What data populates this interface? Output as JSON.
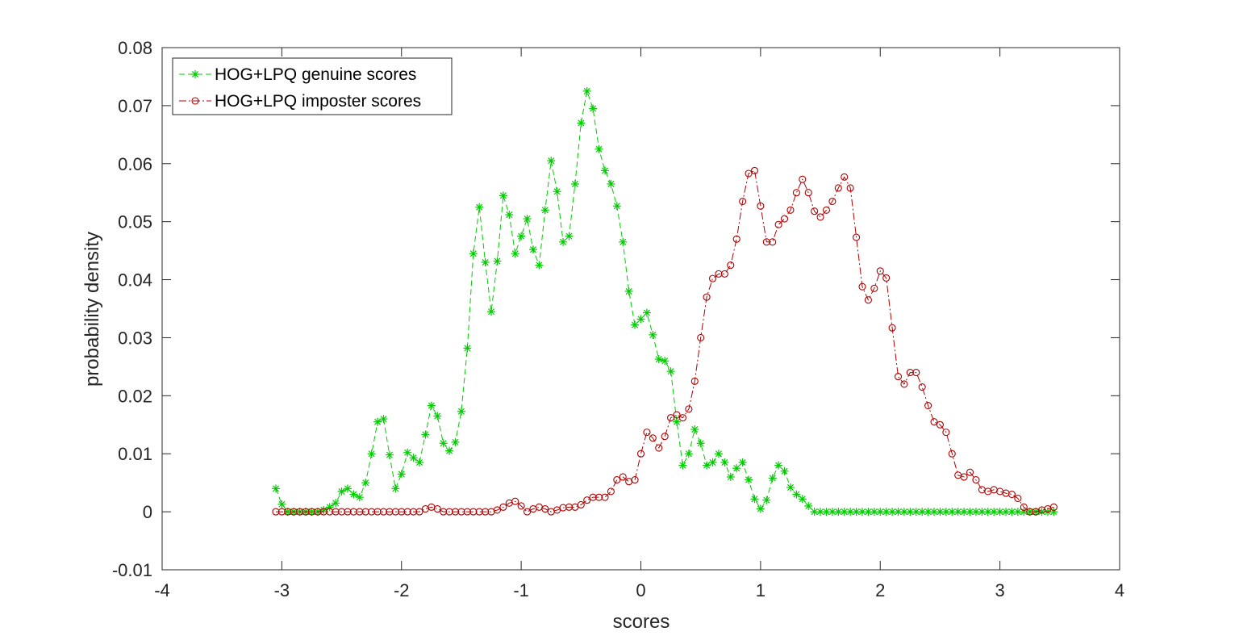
{
  "chart_data": {
    "type": "line",
    "title": "",
    "xlabel": "scores",
    "ylabel": "probability density",
    "xlim": [
      -4,
      4
    ],
    "ylim": [
      -0.01,
      0.08
    ],
    "xticks": [
      "-4",
      "-3",
      "-2",
      "-1",
      "0",
      "1",
      "2",
      "3",
      "4"
    ],
    "yticks": [
      "-0.01",
      "0",
      "0.01",
      "0.02",
      "0.03",
      "0.04",
      "0.05",
      "0.06",
      "0.07",
      "0.08"
    ],
    "grid": false,
    "legend_position": "top-left",
    "series": [
      {
        "name": "HOG+LPQ genuine scores",
        "color": "#00cc00",
        "line_style": "dashed",
        "marker": "asterisk",
        "x": [
          -3.05,
          -3.0,
          -2.95,
          -2.9,
          -2.85,
          -2.8,
          -2.75,
          -2.7,
          -2.65,
          -2.6,
          -2.55,
          -2.5,
          -2.45,
          -2.4,
          -2.35,
          -2.3,
          -2.25,
          -2.2,
          -2.15,
          -2.1,
          -2.05,
          -2.0,
          -1.95,
          -1.9,
          -1.85,
          -1.8,
          -1.75,
          -1.7,
          -1.65,
          -1.6,
          -1.55,
          -1.5,
          -1.45,
          -1.4,
          -1.35,
          -1.3,
          -1.25,
          -1.2,
          -1.15,
          -1.1,
          -1.05,
          -1.0,
          -0.95,
          -0.9,
          -0.85,
          -0.8,
          -0.75,
          -0.7,
          -0.65,
          -0.6,
          -0.55,
          -0.5,
          -0.45,
          -0.4,
          -0.35,
          -0.3,
          -0.25,
          -0.2,
          -0.15,
          -0.1,
          -0.05,
          0.0,
          0.05,
          0.1,
          0.15,
          0.2,
          0.25,
          0.3,
          0.35,
          0.4,
          0.45,
          0.5,
          0.55,
          0.6,
          0.65,
          0.7,
          0.75,
          0.8,
          0.85,
          0.9,
          0.95,
          1.0,
          1.05,
          1.1,
          1.15,
          1.2,
          1.25,
          1.3,
          1.35,
          1.4,
          1.45,
          1.5,
          1.55,
          1.6,
          1.65,
          1.7,
          1.75,
          1.8,
          1.85,
          1.9,
          1.95,
          2.0,
          2.05,
          2.1,
          2.15,
          2.2,
          2.25,
          2.3,
          2.35,
          2.4,
          2.45,
          2.5,
          2.55,
          2.6,
          2.65,
          2.7,
          2.75,
          2.8,
          2.85,
          2.9,
          2.95,
          3.0,
          3.05,
          3.1,
          3.15,
          3.2,
          3.25,
          3.3,
          3.35,
          3.4,
          3.45
        ],
        "y": [
          0.004,
          0.0013,
          0.0,
          0.0,
          0.0,
          0.0,
          0.0,
          0.0,
          0.0003,
          0.0008,
          0.0015,
          0.0035,
          0.004,
          0.003,
          0.0025,
          0.005,
          0.01,
          0.0155,
          0.016,
          0.0098,
          0.004,
          0.0065,
          0.0102,
          0.0093,
          0.0085,
          0.0133,
          0.0183,
          0.0165,
          0.0118,
          0.0105,
          0.012,
          0.0173,
          0.0282,
          0.0445,
          0.0525,
          0.043,
          0.0345,
          0.0432,
          0.0545,
          0.0512,
          0.0445,
          0.0475,
          0.0505,
          0.0452,
          0.0425,
          0.052,
          0.0605,
          0.0552,
          0.0465,
          0.0475,
          0.0565,
          0.067,
          0.0725,
          0.0695,
          0.0625,
          0.0588,
          0.0565,
          0.0527,
          0.0465,
          0.038,
          0.0322,
          0.0332,
          0.0343,
          0.0305,
          0.0263,
          0.026,
          0.0242,
          0.0155,
          0.008,
          0.01,
          0.0142,
          0.0118,
          0.008,
          0.0085,
          0.01,
          0.0085,
          0.006,
          0.0075,
          0.0085,
          0.0055,
          0.0022,
          0.0005,
          0.002,
          0.0058,
          0.008,
          0.007,
          0.0042,
          0.003,
          0.0022,
          0.001,
          0.0,
          0.0,
          0.0,
          0.0,
          0.0,
          0.0,
          0.0,
          0.0,
          0.0,
          0.0,
          0.0,
          0.0,
          0.0,
          0.0,
          0.0,
          0.0,
          0.0,
          0.0,
          0.0,
          0.0,
          0.0,
          0.0,
          0.0,
          0.0,
          0.0,
          0.0,
          0.0,
          0.0,
          0.0,
          0.0,
          0.0,
          0.0,
          0.0,
          0.0,
          0.0,
          0.0,
          0.0,
          0.0,
          0.0,
          0.0,
          0.0
        ]
      },
      {
        "name": "HOG+LPQ imposter scores",
        "color": "#b00000",
        "line_style": "dash-dot",
        "marker": "circle",
        "x": [
          -3.05,
          -3.0,
          -2.95,
          -2.9,
          -2.85,
          -2.8,
          -2.75,
          -2.7,
          -2.65,
          -2.6,
          -2.55,
          -2.5,
          -2.45,
          -2.4,
          -2.35,
          -2.3,
          -2.25,
          -2.2,
          -2.15,
          -2.1,
          -2.05,
          -2.0,
          -1.95,
          -1.9,
          -1.85,
          -1.8,
          -1.75,
          -1.7,
          -1.65,
          -1.6,
          -1.55,
          -1.5,
          -1.45,
          -1.4,
          -1.35,
          -1.3,
          -1.25,
          -1.2,
          -1.15,
          -1.1,
          -1.05,
          -1.0,
          -0.95,
          -0.9,
          -0.85,
          -0.8,
          -0.75,
          -0.7,
          -0.65,
          -0.6,
          -0.55,
          -0.5,
          -0.45,
          -0.4,
          -0.35,
          -0.3,
          -0.25,
          -0.2,
          -0.15,
          -0.1,
          -0.05,
          0.0,
          0.05,
          0.1,
          0.15,
          0.2,
          0.25,
          0.3,
          0.35,
          0.4,
          0.45,
          0.5,
          0.55,
          0.6,
          0.65,
          0.7,
          0.75,
          0.8,
          0.85,
          0.9,
          0.95,
          1.0,
          1.05,
          1.1,
          1.15,
          1.2,
          1.25,
          1.3,
          1.35,
          1.4,
          1.45,
          1.5,
          1.55,
          1.6,
          1.65,
          1.7,
          1.75,
          1.8,
          1.85,
          1.9,
          1.95,
          2.0,
          2.05,
          2.1,
          2.15,
          2.2,
          2.25,
          2.3,
          2.35,
          2.4,
          2.45,
          2.5,
          2.55,
          2.6,
          2.65,
          2.7,
          2.75,
          2.8,
          2.85,
          2.9,
          2.95,
          3.0,
          3.05,
          3.1,
          3.15,
          3.2,
          3.25,
          3.3,
          3.35,
          3.4,
          3.45
        ],
        "y": [
          0.0,
          0.0,
          0.0,
          0.0,
          0.0,
          0.0,
          0.0,
          0.0,
          0.0,
          0.0,
          0.0,
          0.0,
          0.0,
          0.0,
          0.0,
          0.0,
          0.0,
          0.0,
          0.0,
          0.0,
          0.0,
          0.0,
          0.0,
          0.0,
          0.0,
          0.0005,
          0.0008,
          0.0005,
          0.0,
          0.0,
          0.0,
          0.0,
          0.0,
          0.0,
          0.0,
          0.0,
          0.0,
          0.0003,
          0.0008,
          0.0015,
          0.0018,
          0.001,
          0.0,
          0.0005,
          0.0008,
          0.0005,
          0.0,
          0.0003,
          0.0007,
          0.0008,
          0.0008,
          0.0012,
          0.002,
          0.0025,
          0.0025,
          0.0025,
          0.0035,
          0.0055,
          0.006,
          0.0052,
          0.0055,
          0.01,
          0.0137,
          0.0127,
          0.011,
          0.013,
          0.0162,
          0.0167,
          0.0162,
          0.0177,
          0.0225,
          0.03,
          0.037,
          0.0402,
          0.041,
          0.041,
          0.0425,
          0.047,
          0.0535,
          0.0583,
          0.0588,
          0.0527,
          0.0465,
          0.0465,
          0.0495,
          0.0505,
          0.052,
          0.055,
          0.0573,
          0.055,
          0.0518,
          0.0508,
          0.052,
          0.0535,
          0.0558,
          0.0577,
          0.0558,
          0.0473,
          0.0388,
          0.0365,
          0.0385,
          0.0415,
          0.0403,
          0.0317,
          0.0233,
          0.022,
          0.024,
          0.024,
          0.0215,
          0.0183,
          0.0155,
          0.015,
          0.0137,
          0.01,
          0.0063,
          0.006,
          0.0068,
          0.0055,
          0.0038,
          0.0035,
          0.0038,
          0.0035,
          0.0032,
          0.003,
          0.0023,
          0.0008,
          0.0,
          0.0,
          0.0003,
          0.0005,
          0.0008
        ]
      }
    ]
  }
}
